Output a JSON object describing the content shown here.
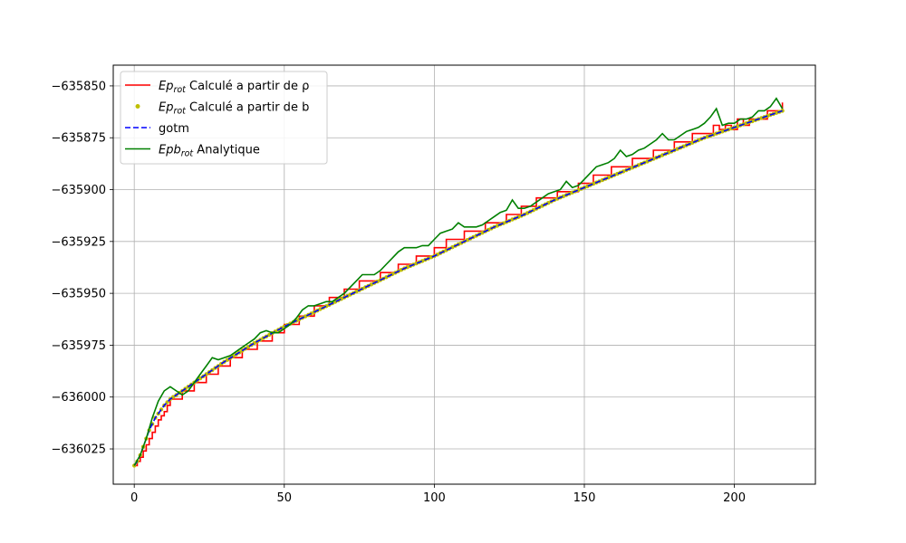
{
  "chart_data": {
    "type": "line",
    "title": "",
    "xlabel": "",
    "ylabel": "",
    "xlim": [
      -7,
      227
    ],
    "ylim": [
      -636042,
      -635840
    ],
    "xticks": [
      0,
      50,
      100,
      150,
      200
    ],
    "xtick_labels": [
      "0",
      "50",
      "100",
      "150",
      "200"
    ],
    "yticks": [
      -636025,
      -636000,
      -635975,
      -635950,
      -635925,
      -635900,
      -635875,
      -635850
    ],
    "ytick_labels": [
      "−636025",
      "−636000",
      "−635975",
      "−635950",
      "−635925",
      "−635900",
      "−635875",
      "−635850"
    ],
    "grid": true,
    "legend_position": "upper-left",
    "series": [
      {
        "name": "Ep_rot Calculé a partir de ρ",
        "label_main": "Ep",
        "label_sub": "rot",
        "label_rest": " Calculé a partir de ρ",
        "color": "#ff0000",
        "style": "step",
        "x": [
          0,
          1,
          2,
          3,
          4,
          5,
          6,
          7,
          8,
          9,
          10,
          11,
          12,
          16,
          20,
          24,
          28,
          32,
          36,
          41,
          46,
          50,
          55,
          60,
          65,
          70,
          75,
          82,
          88,
          94,
          100,
          104,
          110,
          117,
          124,
          129,
          134,
          141,
          148,
          153,
          159,
          166,
          173,
          180,
          186,
          193,
          195,
          197,
          199,
          201,
          203,
          205,
          207,
          209,
          211,
          213,
          215,
          216
        ],
        "y": [
          -636033,
          -636031,
          -636029,
          -636026,
          -636023,
          -636020,
          -636017,
          -636014,
          -636011,
          -636009,
          -636007,
          -636004,
          -636001,
          -635997,
          -635993,
          -635989,
          -635985,
          -635981,
          -635977,
          -635973,
          -635969,
          -635965,
          -635961,
          -635956,
          -635952,
          -635948,
          -635944,
          -635940,
          -635936,
          -635932,
          -635928,
          -635924,
          -635920,
          -635916,
          -635912,
          -635908,
          -635904,
          -635901,
          -635897,
          -635893,
          -635889,
          -635885,
          -635881,
          -635877,
          -635873,
          -635869,
          -635871,
          -635869,
          -635871,
          -635866,
          -635869,
          -635866,
          -635866,
          -635866,
          -635862,
          -635862,
          -635862,
          -635858
        ]
      },
      {
        "name": "Ep_rot Calculé a partir de b",
        "label_main": "Ep",
        "label_sub": "rot",
        "label_rest": " Calculé a partir de b",
        "color": "#bfbf00",
        "style": "scatter",
        "curve": "main"
      },
      {
        "name": "gotm",
        "label_main": "",
        "label_sub": "",
        "label_rest": "gotm",
        "color": "#0000ff",
        "style": "dashed",
        "curve": "main"
      },
      {
        "name": "Epb_rot Analytique",
        "label_main": "Epb",
        "label_sub": "rot",
        "label_rest": " Analytique",
        "color": "#008000",
        "style": "line",
        "x": [
          0,
          2,
          4,
          6,
          8,
          10,
          12,
          14,
          16,
          18,
          20,
          22,
          24,
          26,
          28,
          30,
          32,
          34,
          36,
          38,
          40,
          42,
          44,
          46,
          48,
          50,
          52,
          54,
          56,
          58,
          60,
          62,
          64,
          66,
          68,
          70,
          72,
          74,
          76,
          78,
          80,
          82,
          84,
          86,
          88,
          90,
          92,
          94,
          96,
          98,
          100,
          102,
          104,
          106,
          108,
          110,
          112,
          114,
          116,
          118,
          120,
          122,
          124,
          126,
          128,
          130,
          132,
          134,
          136,
          138,
          140,
          142,
          144,
          146,
          148,
          150,
          152,
          154,
          156,
          158,
          160,
          162,
          164,
          166,
          168,
          170,
          172,
          174,
          176,
          178,
          180,
          182,
          184,
          186,
          188,
          190,
          192,
          194,
          196,
          198,
          200,
          202,
          204,
          206,
          208,
          210,
          212,
          214,
          216
        ],
        "y": [
          -636033,
          -636028,
          -636020,
          -636010,
          -636002,
          -635997,
          -635995,
          -635997,
          -635999,
          -635997,
          -635993,
          -635989,
          -635985,
          -635981,
          -635982,
          -635981,
          -635980,
          -635978,
          -635976,
          -635974,
          -635972,
          -635969,
          -635968,
          -635969,
          -635969,
          -635967,
          -635965,
          -635962,
          -635958,
          -635956,
          -635956,
          -635955,
          -635954,
          -635954,
          -635952,
          -635950,
          -635947,
          -635944,
          -635941,
          -635941,
          -635941,
          -635939,
          -635936,
          -635933,
          -635930,
          -635928,
          -635928,
          -635928,
          -635927,
          -635927,
          -635924,
          -635921,
          -635920,
          -635919,
          -635916,
          -635918,
          -635918,
          -635918,
          -635917,
          -635915,
          -635913,
          -635911,
          -635910,
          -635905,
          -635909,
          -635909,
          -635908,
          -635906,
          -635904,
          -635902,
          -635901,
          -635900,
          -635896,
          -635899,
          -635898,
          -635895,
          -635892,
          -635889,
          -635888,
          -635887,
          -635885,
          -635881,
          -635884,
          -635883,
          -635881,
          -635880,
          -635878,
          -635876,
          -635873,
          -635876,
          -635876,
          -635874,
          -635872,
          -635871,
          -635870,
          -635868,
          -635865,
          -635861,
          -635869,
          -635868,
          -635868,
          -635866,
          -635866,
          -635865,
          -635862,
          -635862,
          -635860,
          -635856,
          -635861
        ]
      }
    ],
    "main_curve": {
      "description_free": true,
      "x": [
        0,
        1,
        2,
        3,
        4,
        5,
        6,
        7,
        8,
        9,
        10,
        12,
        14,
        16,
        18,
        20,
        25,
        30,
        40,
        50,
        60,
        70,
        80,
        90,
        100,
        110,
        120,
        130,
        140,
        150,
        160,
        170,
        180,
        190,
        200,
        210,
        216
      ],
      "y": [
        -636033,
        -636031,
        -636028,
        -636024,
        -636020,
        -636016,
        -636013,
        -636010,
        -636008,
        -636006,
        -636004,
        -636001,
        -635999,
        -635997,
        -635995,
        -635993,
        -635988,
        -635983,
        -635974,
        -635966,
        -635959,
        -635952,
        -635945,
        -635938,
        -635932,
        -635925,
        -635918,
        -635912,
        -635905,
        -635899,
        -635893,
        -635887,
        -635881,
        -635875,
        -635870,
        -635865,
        -635862
      ]
    }
  }
}
